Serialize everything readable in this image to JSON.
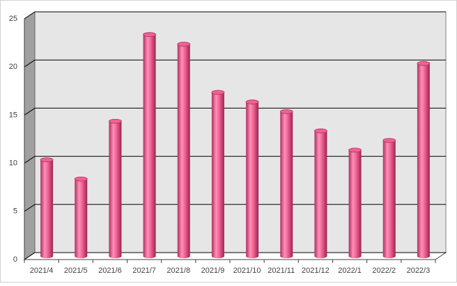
{
  "chart_data": {
    "type": "bar",
    "categories": [
      "2021/4",
      "2021/5",
      "2021/6",
      "2021/7",
      "2021/8",
      "2021/9",
      "2021/10",
      "2021/11",
      "2021/12",
      "2022/1",
      "2022/2",
      "2022/3"
    ],
    "values": [
      10,
      8,
      14,
      23,
      22,
      17,
      16,
      15,
      13,
      11,
      12,
      20
    ],
    "color": "#f06292",
    "ylim": [
      0,
      25
    ],
    "yticks": [
      0,
      5,
      10,
      15,
      20,
      25
    ],
    "grid": true
  }
}
